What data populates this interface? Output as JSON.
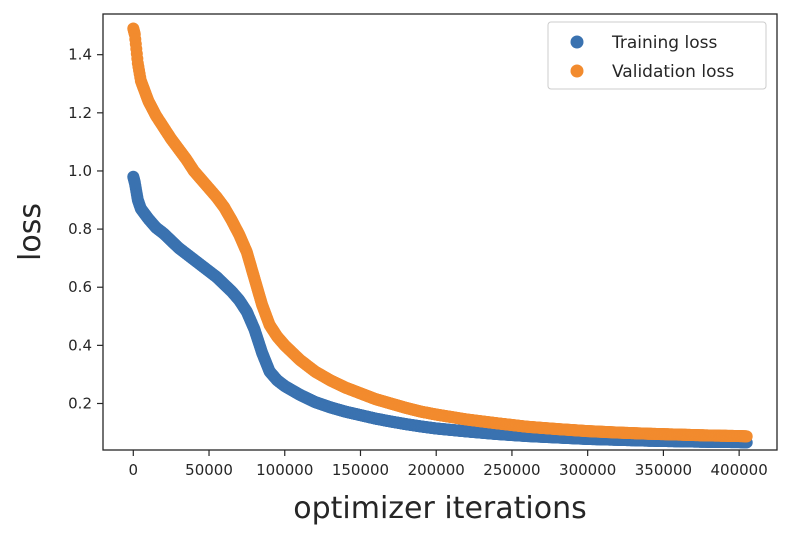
{
  "chart_data": {
    "type": "scatter",
    "title": "",
    "xlabel": "optimizer iterations",
    "ylabel": "loss",
    "xlim": [
      -20000,
      425000
    ],
    "ylim": [
      0.04,
      1.54
    ],
    "xticks": [
      0,
      50000,
      100000,
      150000,
      200000,
      250000,
      300000,
      350000,
      400000
    ],
    "yticks": [
      0.2,
      0.4,
      0.6,
      0.8,
      1.0,
      1.2,
      1.4
    ],
    "grid": false,
    "legend_position": "top-right",
    "series": [
      {
        "name": "Training loss",
        "color": "#3a72b0",
        "points": [
          [
            0,
            0.98
          ],
          [
            500,
            0.97
          ],
          [
            1000,
            0.96
          ],
          [
            2000,
            0.93
          ],
          [
            3000,
            0.9
          ],
          [
            5000,
            0.87
          ],
          [
            10000,
            0.835
          ],
          [
            15000,
            0.805
          ],
          [
            20000,
            0.785
          ],
          [
            25000,
            0.76
          ],
          [
            30000,
            0.735
          ],
          [
            35000,
            0.715
          ],
          [
            40000,
            0.695
          ],
          [
            45000,
            0.675
          ],
          [
            50000,
            0.655
          ],
          [
            55000,
            0.635
          ],
          [
            60000,
            0.61
          ],
          [
            65000,
            0.585
          ],
          [
            70000,
            0.555
          ],
          [
            75000,
            0.515
          ],
          [
            80000,
            0.455
          ],
          [
            85000,
            0.375
          ],
          [
            90000,
            0.31
          ],
          [
            95000,
            0.28
          ],
          [
            100000,
            0.26
          ],
          [
            110000,
            0.23
          ],
          [
            120000,
            0.205
          ],
          [
            130000,
            0.187
          ],
          [
            140000,
            0.172
          ],
          [
            150000,
            0.16
          ],
          [
            160000,
            0.148
          ],
          [
            170000,
            0.138
          ],
          [
            180000,
            0.129
          ],
          [
            190000,
            0.121
          ],
          [
            200000,
            0.114
          ],
          [
            220000,
            0.104
          ],
          [
            240000,
            0.095
          ],
          [
            260000,
            0.088
          ],
          [
            280000,
            0.083
          ],
          [
            300000,
            0.078
          ],
          [
            320000,
            0.075
          ],
          [
            340000,
            0.072
          ],
          [
            360000,
            0.07
          ],
          [
            380000,
            0.068
          ],
          [
            400000,
            0.067
          ],
          [
            405000,
            0.066
          ]
        ]
      },
      {
        "name": "Validation loss",
        "color": "#f28b2e",
        "points": [
          [
            0,
            1.49
          ],
          [
            500,
            1.48
          ],
          [
            1000,
            1.47
          ],
          [
            2000,
            1.42
          ],
          [
            3000,
            1.37
          ],
          [
            5000,
            1.31
          ],
          [
            10000,
            1.24
          ],
          [
            15000,
            1.19
          ],
          [
            20000,
            1.15
          ],
          [
            25000,
            1.11
          ],
          [
            30000,
            1.075
          ],
          [
            35000,
            1.04
          ],
          [
            40000,
            1.0
          ],
          [
            45000,
            0.97
          ],
          [
            50000,
            0.94
          ],
          [
            55000,
            0.91
          ],
          [
            60000,
            0.875
          ],
          [
            65000,
            0.83
          ],
          [
            70000,
            0.78
          ],
          [
            75000,
            0.72
          ],
          [
            80000,
            0.63
          ],
          [
            85000,
            0.54
          ],
          [
            90000,
            0.47
          ],
          [
            95000,
            0.43
          ],
          [
            100000,
            0.4
          ],
          [
            110000,
            0.35
          ],
          [
            120000,
            0.31
          ],
          [
            130000,
            0.28
          ],
          [
            140000,
            0.255
          ],
          [
            150000,
            0.235
          ],
          [
            160000,
            0.215
          ],
          [
            170000,
            0.2
          ],
          [
            180000,
            0.185
          ],
          [
            190000,
            0.172
          ],
          [
            200000,
            0.162
          ],
          [
            220000,
            0.145
          ],
          [
            240000,
            0.132
          ],
          [
            260000,
            0.12
          ],
          [
            280000,
            0.112
          ],
          [
            300000,
            0.105
          ],
          [
            320000,
            0.1
          ],
          [
            340000,
            0.096
          ],
          [
            360000,
            0.093
          ],
          [
            380000,
            0.09
          ],
          [
            400000,
            0.088
          ],
          [
            405000,
            0.087
          ]
        ]
      }
    ]
  }
}
